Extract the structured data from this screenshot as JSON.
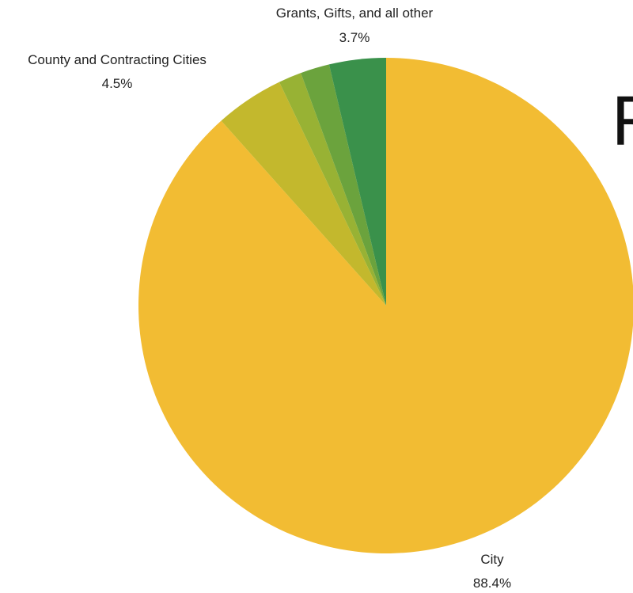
{
  "chart_data": {
    "type": "pie",
    "title": "R",
    "start": "12 o'clock",
    "direction": "clockwise",
    "slices": [
      {
        "label": "City",
        "value": 88.4,
        "value_label": "88.4%",
        "color": "#F2BC33"
      },
      {
        "label": "County and Contracting Cities",
        "value": 4.5,
        "value_label": "4.5%",
        "color": "#C3B82D"
      },
      {
        "label": "",
        "value": 1.5,
        "value_label": "",
        "color": "#98B234"
      },
      {
        "label": "",
        "value": 1.9,
        "value_label": "",
        "color": "#6BA33D"
      },
      {
        "label": "Grants, Gifts, and all other",
        "value": 3.7,
        "value_label": "3.7%",
        "color": "#3A914B"
      }
    ]
  }
}
